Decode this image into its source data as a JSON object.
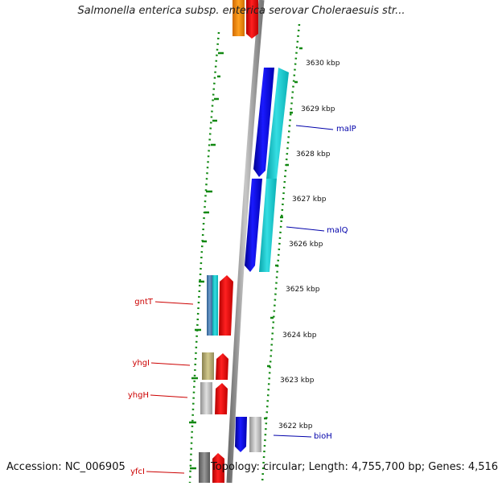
{
  "title": "Salmonella enterica subsp. enterica serovar Choleraesuis str...",
  "footer": {
    "accession": "Accession: NC_006905",
    "summary": "Topology: circular; Length: 4,755,700 bp; Genes: 4,516"
  },
  "ticks": [
    "3630 kbp",
    "3629 kbp",
    "3628 kbp",
    "3627 kbp",
    "3626 kbp",
    "3625 kbp",
    "3624 kbp",
    "3623 kbp",
    "3622 kbp"
  ],
  "genes": [
    {
      "label": "malP",
      "color": "#0000aa"
    },
    {
      "label": "malQ",
      "color": "#0000aa"
    },
    {
      "label": "bioH",
      "color": "#0000aa"
    },
    {
      "label": "gntT",
      "color": "#cc0000"
    },
    {
      "label": "yhgI",
      "color": "#cc0000"
    },
    {
      "label": "yhgH",
      "color": "#cc0000"
    },
    {
      "label": "yfcI",
      "color": "#cc0000"
    }
  ],
  "colors": {
    "backbone": "#8a8a8a",
    "forward_strand": "#ee0000",
    "reverse_strand": "#0000ee",
    "cyan_feature": "#1cc7cc",
    "gc_ticks": "#118811"
  }
}
